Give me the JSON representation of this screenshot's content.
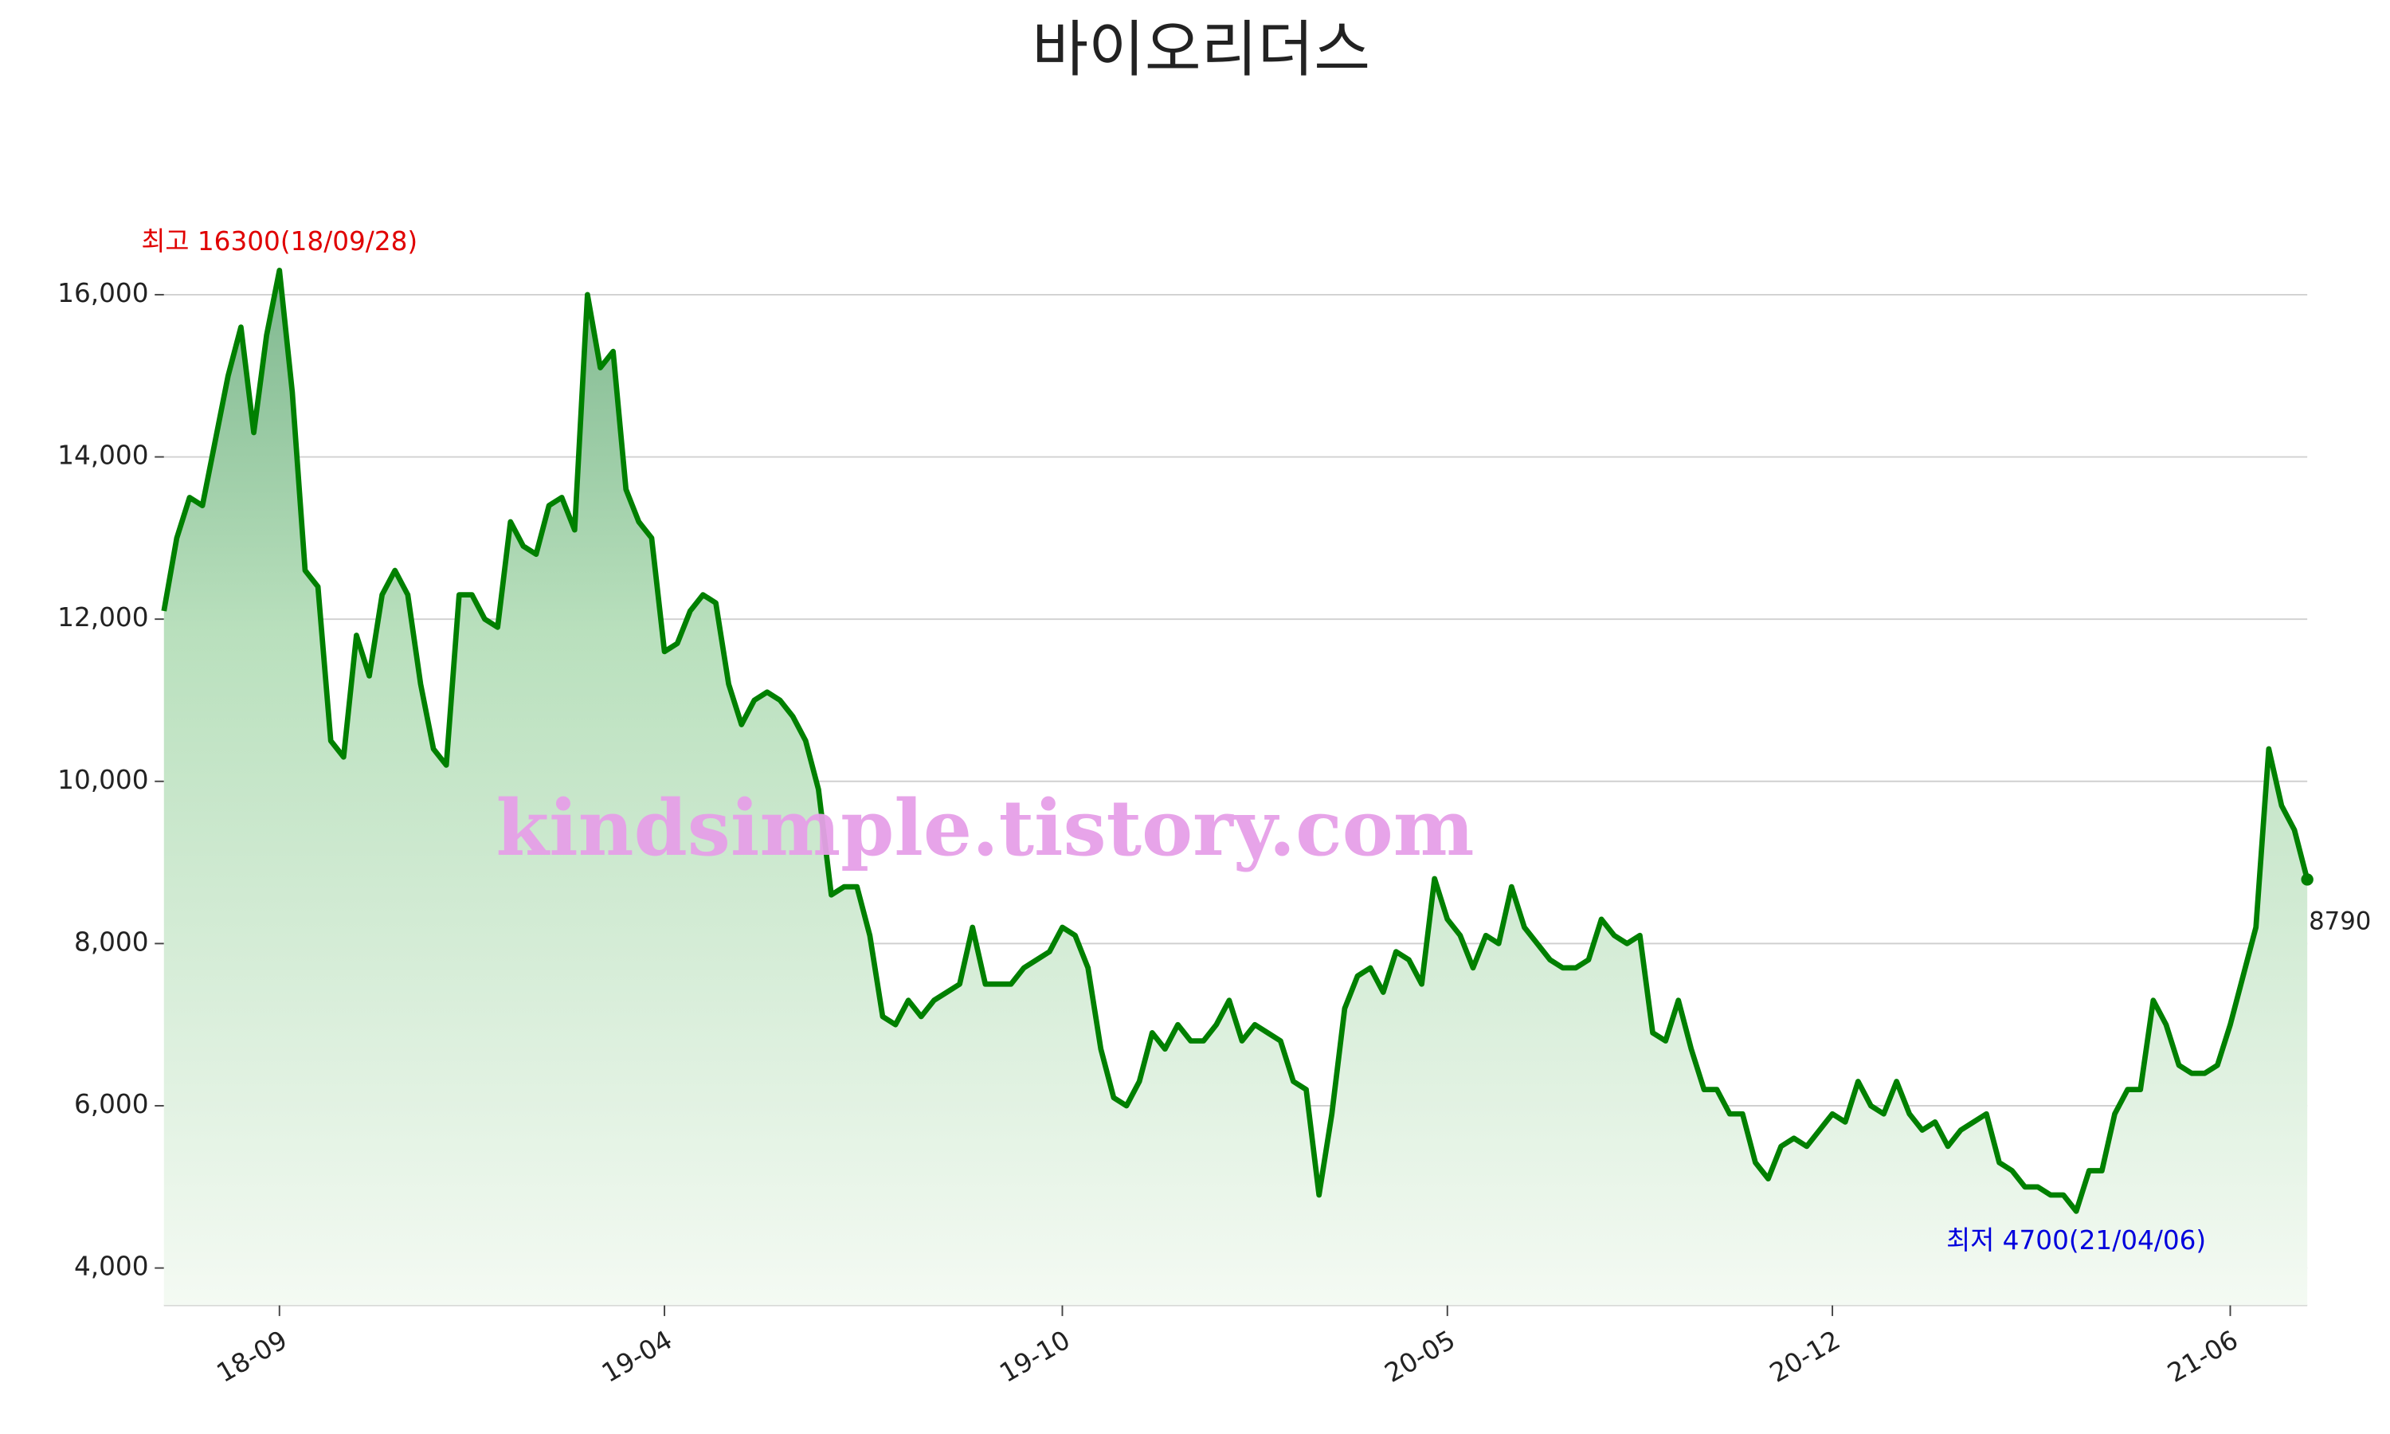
{
  "chart_data": {
    "type": "area",
    "title": "바이오리더스",
    "watermark": "kindsimple.tistory.com",
    "max_label": "최고 16300(18/09/28)",
    "min_label": "최저 4700(21/04/06)",
    "color": "#008000",
    "ylim": [
      3540,
      16800
    ],
    "yticks": [
      {
        "value": 4000,
        "label": "4,000"
      },
      {
        "value": 6000,
        "label": "6,000"
      },
      {
        "value": 8000,
        "label": "8,000"
      },
      {
        "value": 10000,
        "label": "10,000"
      },
      {
        "value": 12000,
        "label": "12,000"
      },
      {
        "value": 14000,
        "label": "14,000"
      },
      {
        "value": 16000,
        "label": "16,000"
      }
    ],
    "grid": true,
    "categories": [
      null,
      null,
      null,
      null,
      null,
      null,
      null,
      null,
      null,
      "18-09",
      null,
      null,
      null,
      null,
      null,
      null,
      null,
      null,
      null,
      null,
      null,
      null,
      null,
      null,
      null,
      null,
      null,
      null,
      null,
      null,
      null,
      null,
      null,
      null,
      null,
      null,
      null,
      null,
      null,
      "19-04",
      null,
      null,
      null,
      null,
      null,
      null,
      null,
      null,
      null,
      null,
      null,
      null,
      null,
      null,
      null,
      null,
      null,
      null,
      null,
      null,
      null,
      null,
      null,
      null,
      null,
      null,
      null,
      null,
      null,
      null,
      "19-10",
      null,
      null,
      null,
      null,
      null,
      null,
      null,
      null,
      null,
      null,
      null,
      null,
      null,
      null,
      null,
      null,
      null,
      null,
      null,
      null,
      null,
      null,
      null,
      null,
      null,
      null,
      null,
      null,
      null,
      "20-05",
      null,
      null,
      null,
      null,
      null,
      null,
      null,
      null,
      null,
      null,
      null,
      null,
      null,
      null,
      null,
      null,
      null,
      null,
      null,
      null,
      null,
      null,
      null,
      null,
      null,
      null,
      null,
      null,
      null,
      "20-12",
      null,
      null,
      null,
      null,
      null,
      null,
      null,
      null,
      null,
      null,
      null,
      null,
      null,
      null,
      null,
      null,
      null,
      null,
      null,
      null,
      null,
      null,
      null,
      null,
      null,
      null,
      null,
      null,
      null,
      null,
      "21-06",
      null,
      null,
      null,
      null,
      null,
      null
    ],
    "values": [
      12100,
      13000,
      13500,
      13400,
      14200,
      15000,
      15600,
      14300,
      15500,
      16300,
      14800,
      12600,
      12400,
      10500,
      10300,
      11800,
      11300,
      12300,
      12600,
      12300,
      11200,
      10400,
      10200,
      12300,
      12300,
      12000,
      11900,
      13200,
      12900,
      12800,
      13400,
      13500,
      13100,
      16000,
      15100,
      15300,
      13600,
      13200,
      13000,
      11600,
      11700,
      12100,
      12300,
      12200,
      11200,
      10700,
      11000,
      11100,
      11000,
      10800,
      10500,
      9900,
      8600,
      8700,
      8700,
      8100,
      7100,
      7000,
      7300,
      7100,
      7300,
      7400,
      7500,
      8200,
      7500,
      7500,
      7500,
      7700,
      7800,
      7900,
      8200,
      8100,
      7700,
      6700,
      6100,
      6000,
      6300,
      6900,
      6700,
      7000,
      6800,
      6800,
      7000,
      7300,
      6800,
      7000,
      6900,
      6800,
      6300,
      6200,
      4900,
      5900,
      7200,
      7600,
      7700,
      7400,
      7900,
      7800,
      7500,
      8800,
      8300,
      8100,
      7700,
      8100,
      8000,
      8700,
      8200,
      8000,
      7800,
      7700,
      7700,
      7800,
      8300,
      8100,
      8000,
      8100,
      6900,
      6800,
      7300,
      6700,
      6200,
      6200,
      5900,
      5900,
      5300,
      5100,
      5500,
      5600,
      5500,
      5700,
      5900,
      5800,
      6300,
      6000,
      5900,
      6300,
      5900,
      5700,
      5800,
      5500,
      5700,
      5800,
      5900,
      5300,
      5200,
      5000,
      5000,
      4900,
      4900,
      4700,
      5200,
      5200,
      5900,
      6200,
      6200,
      7300,
      7000,
      6500,
      6400,
      6400,
      6500,
      7000,
      7600,
      8200,
      10400,
      9700,
      9400,
      8790
    ]
  }
}
